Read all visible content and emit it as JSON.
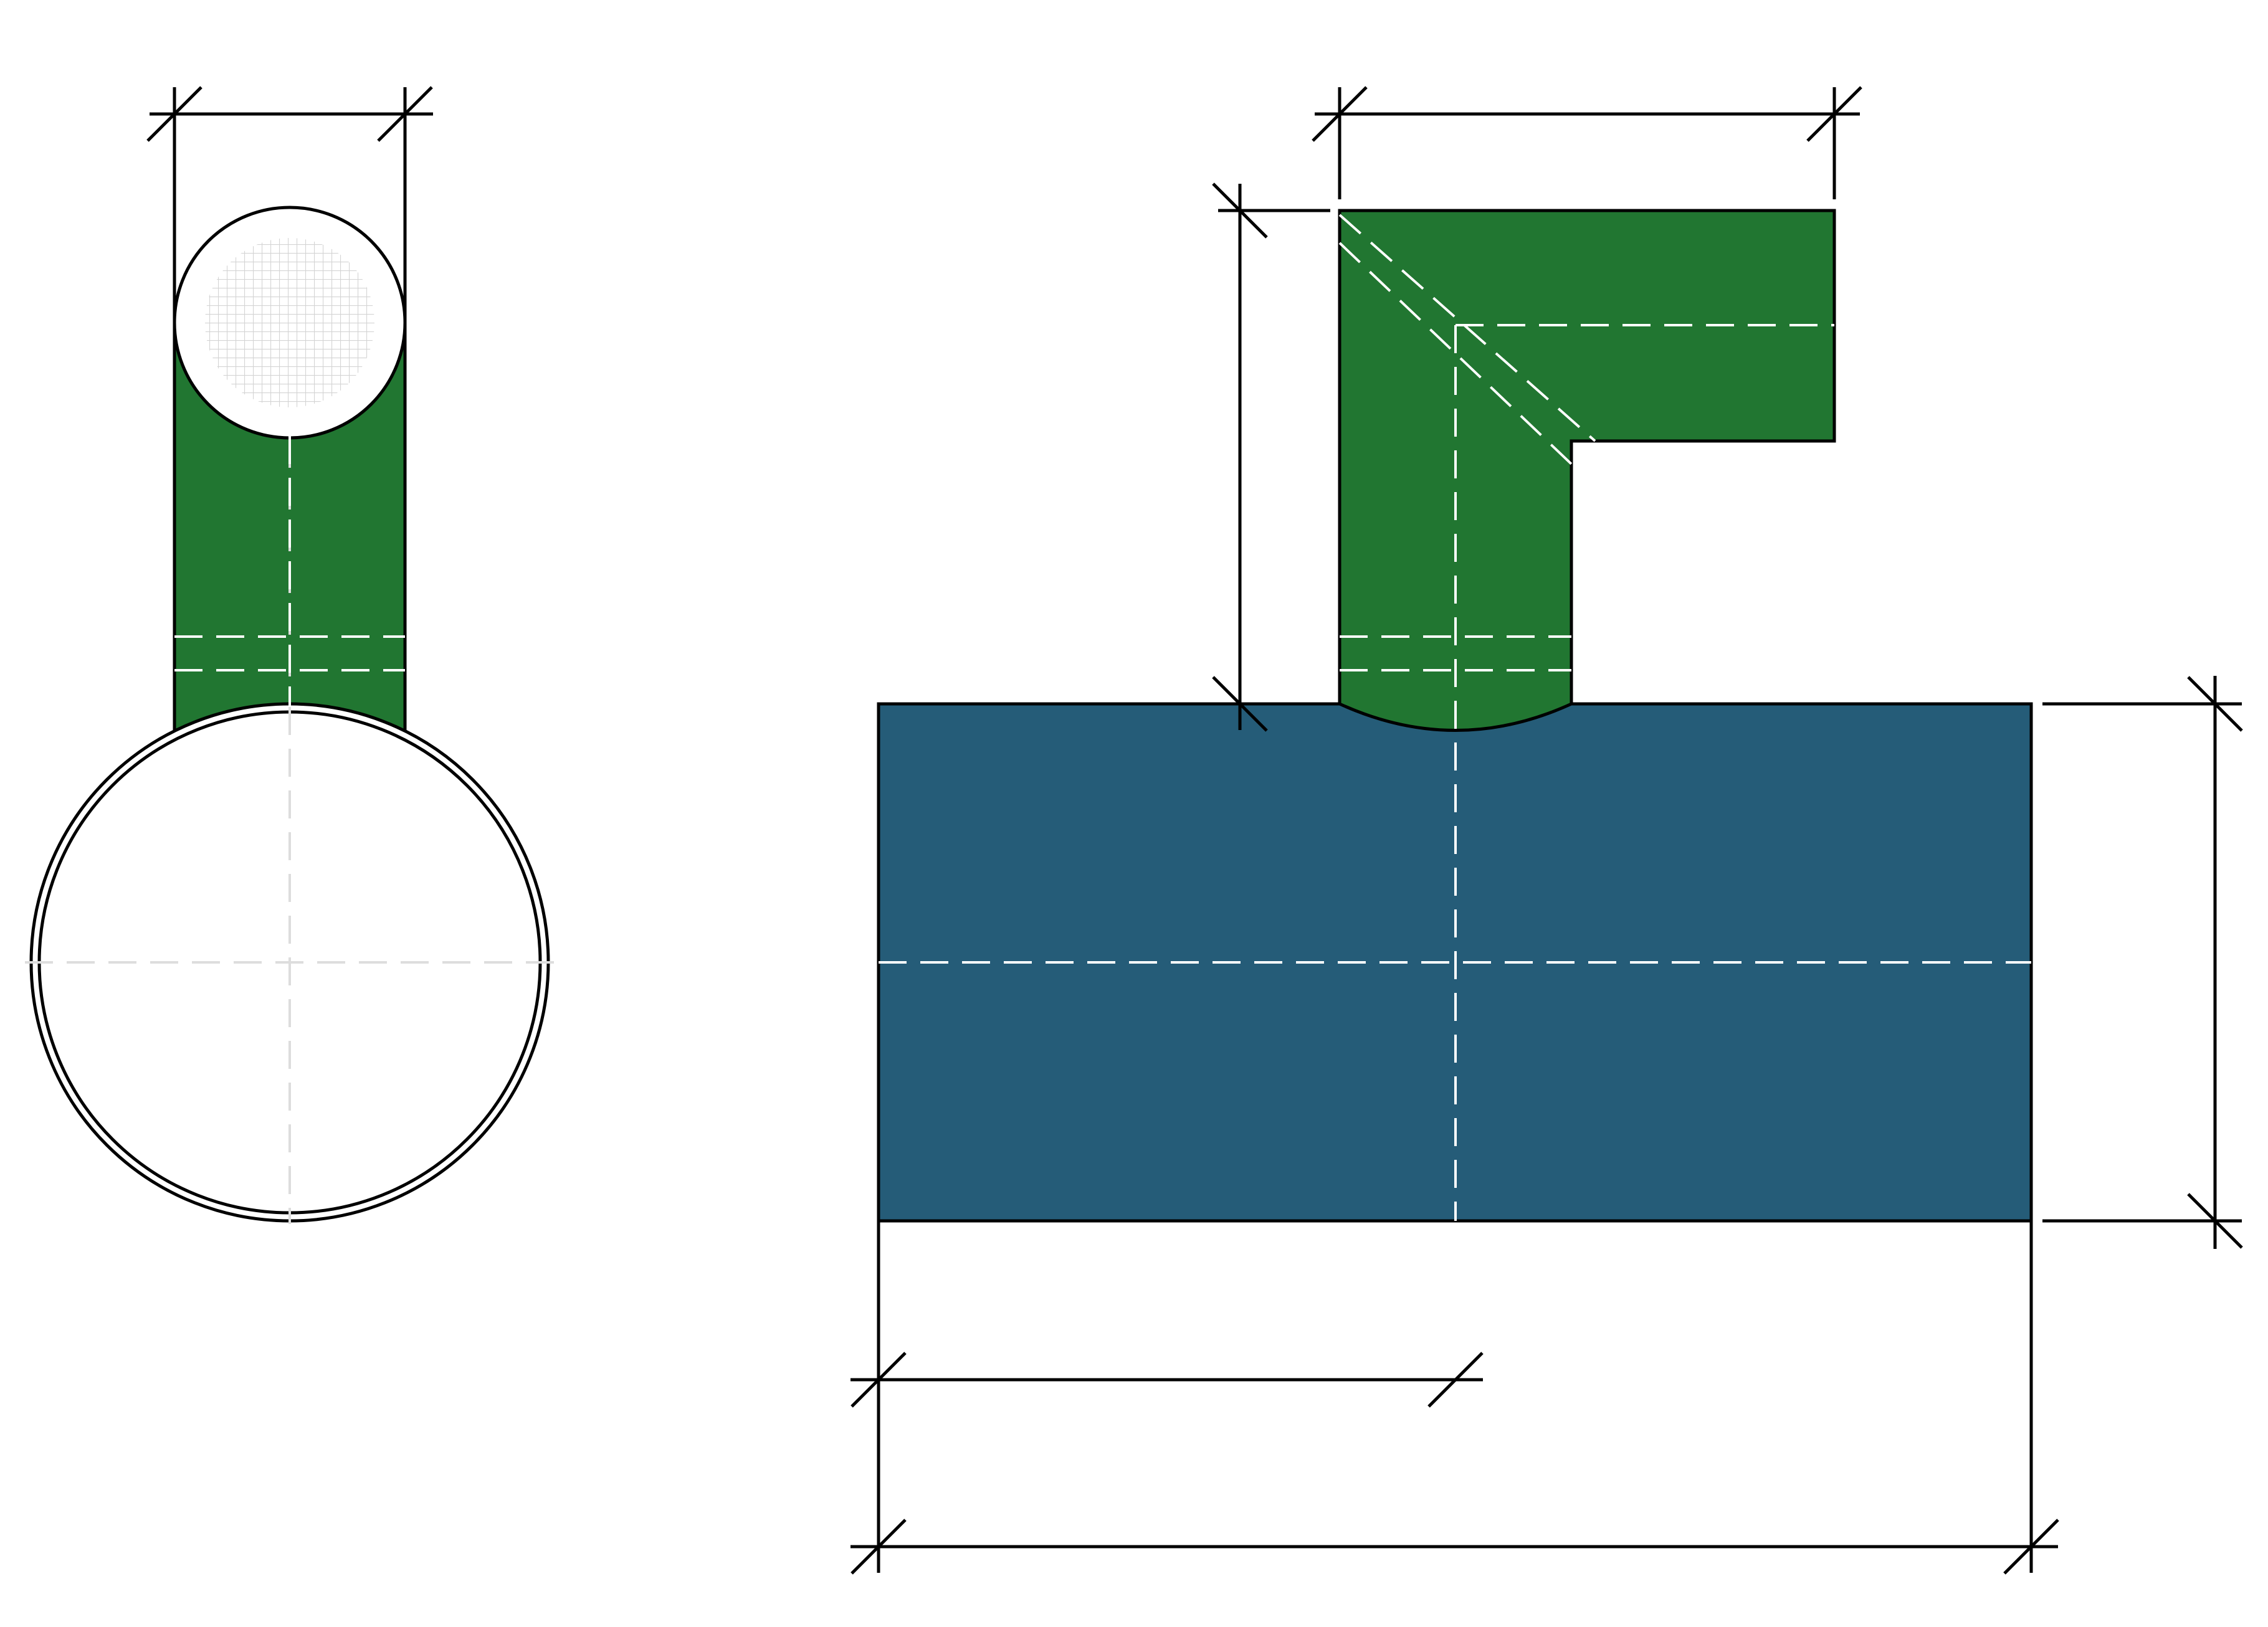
{
  "drawing": {
    "title": "",
    "colors": {
      "background": "#ffffff",
      "branch": "#217631",
      "main_pipe": "#255c78",
      "outline": "#000000",
      "centerline_light": "#dddddd",
      "centerline_on_color": "#ffffff",
      "mesh": "#d9d9d9"
    },
    "views": [
      {
        "name": "side-view",
        "parts": [
          "branch-leg",
          "branch-end-circle",
          "main-pipe-circle"
        ]
      },
      {
        "name": "front-view",
        "parts": [
          "main-pipe-body",
          "branch-elbow"
        ]
      }
    ],
    "dimension_labels": {
      "side_branch_width": "",
      "front_branch_length": "",
      "front_branch_height": "",
      "front_pipe_height": "",
      "front_branch_position": "",
      "front_pipe_length": ""
    }
  }
}
